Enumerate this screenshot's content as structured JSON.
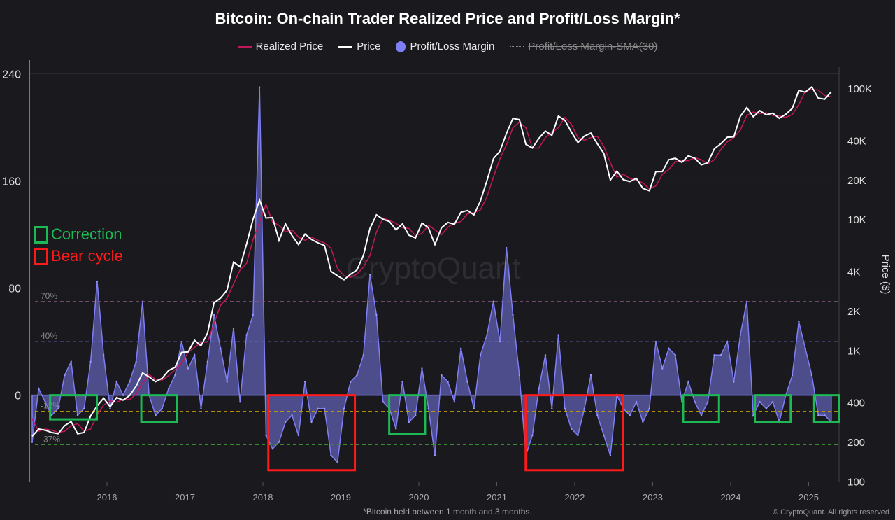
{
  "chart_data": {
    "type": "line",
    "title": "Bitcoin: On-chain Trader Realized Price and Profit/Loss Margin*",
    "footnote": "*Bitcoin held between 1 month and 3 months.",
    "copyright": "© CryptoQuant. All rights reserved",
    "watermark": "CryptoQuant",
    "legend": [
      {
        "name": "Realized Price",
        "color": "#c2185b",
        "marker": "line"
      },
      {
        "name": "Price",
        "color": "#ffffff",
        "marker": "line"
      },
      {
        "name": "Profit/Loss Margin",
        "color": "#7f7ff5",
        "marker": "dot"
      },
      {
        "name": "Profit/Loss Margin-SMA(30)",
        "color": "#888888",
        "marker": "dashed",
        "hidden": true
      }
    ],
    "legend_placement": "top-center",
    "x_axis": {
      "type": "time",
      "start": "2015-01",
      "end": "2025-04",
      "ticks": [
        "2016",
        "2017",
        "2018",
        "2019",
        "2020",
        "2021",
        "2022",
        "2023",
        "2024",
        "2025"
      ]
    },
    "y_left": {
      "label": "",
      "range": [
        -65,
        245
      ],
      "ticks": [
        0,
        80,
        160,
        240
      ]
    },
    "y_right": {
      "label": "Price ($)",
      "scale": "log",
      "range": [
        98,
        145000
      ],
      "ticks": [
        {
          "v": 100,
          "t": "100"
        },
        {
          "v": 200,
          "t": "200"
        },
        {
          "v": 400,
          "t": "400"
        },
        {
          "v": 1000,
          "t": "1K"
        },
        {
          "v": 2000,
          "t": "2K"
        },
        {
          "v": 4000,
          "t": "4K"
        },
        {
          "v": 10000,
          "t": "10K"
        },
        {
          "v": 20000,
          "t": "20K"
        },
        {
          "v": 40000,
          "t": "40K"
        },
        {
          "v": 100000,
          "t": "100K"
        }
      ]
    },
    "grid": "horizontal",
    "reference_lines": [
      {
        "value": 70,
        "label": "70%",
        "color": "#8a5a8a"
      },
      {
        "value": 40,
        "label": "40%",
        "color": "#6b6bd6"
      },
      {
        "value": -12,
        "label": "-12%",
        "color": "#c8a000"
      },
      {
        "value": -37,
        "label": "-37%",
        "color": "#3a8a3a"
      }
    ],
    "annotation_legend": [
      {
        "label": "Correction",
        "color": "#1db954"
      },
      {
        "label": "Bear cycle",
        "color": "#ff1a1a"
      }
    ],
    "annotation_boxes": [
      {
        "kind": "Correction",
        "from": 2015.27,
        "to": 2015.87,
        "margin_low": -18
      },
      {
        "kind": "Correction",
        "from": 2016.44,
        "to": 2016.9,
        "margin_low": -20
      },
      {
        "kind": "Bear cycle",
        "from": 2018.07,
        "to": 2019.18,
        "margin_low": -56
      },
      {
        "kind": "Correction",
        "from": 2019.62,
        "to": 2020.08,
        "margin_low": -29
      },
      {
        "kind": "Bear cycle",
        "from": 2021.37,
        "to": 2022.62,
        "margin_low": -56
      },
      {
        "kind": "Correction",
        "from": 2023.39,
        "to": 2023.85,
        "margin_low": -20
      },
      {
        "kind": "Correction",
        "from": 2024.31,
        "to": 2024.77,
        "margin_low": -20
      },
      {
        "kind": "Correction",
        "from": 2025.07,
        "to": 2025.39,
        "margin_low": -20
      }
    ],
    "series": [
      {
        "name": "Price",
        "frequency": "monthly",
        "start": "2015-01",
        "values": [
          220,
          250,
          245,
          235,
          230,
          265,
          285,
          230,
          235,
          315,
          375,
          430,
          370,
          435,
          415,
          450,
          530,
          670,
          625,
          575,
          610,
          700,
          740,
          960,
          970,
          1190,
          1080,
          1350,
          2300,
          2500,
          2870,
          4700,
          4340,
          6450,
          10000,
          14000,
          10200,
          10300,
          6900,
          9200,
          7500,
          6400,
          7700,
          7000,
          6600,
          6300,
          4000,
          3700,
          3450,
          3800,
          4100,
          5300,
          8500,
          10800,
          10000,
          9600,
          8300,
          9200,
          7550,
          7200,
          9350,
          8600,
          6400,
          8600,
          9450,
          9150,
          11300,
          11650,
          10800,
          13800,
          19700,
          29000,
          33100,
          45200,
          58800,
          57700,
          37300,
          35000,
          41500,
          47100,
          43800,
          61300,
          57000,
          46300,
          38500,
          43200,
          45500,
          37700,
          31800,
          19900,
          23300,
          20000,
          19400,
          20500,
          17200,
          16500,
          23100,
          23150,
          28500,
          29250,
          27200,
          30500,
          29200,
          26000,
          27000,
          34500,
          37700,
          42300,
          42600,
          61100,
          71300,
          60600,
          67500,
          62700,
          64600,
          59000,
          63300,
          70200,
          96400,
          93400,
          102400,
          84300,
          82500,
          94000
        ]
      },
      {
        "name": "Realized Price",
        "frequency": "monthly",
        "start": "2015-01",
        "values": [
          300,
          240,
          250,
          245,
          235,
          240,
          265,
          275,
          240,
          250,
          320,
          380,
          410,
          400,
          420,
          420,
          460,
          560,
          650,
          600,
          590,
          640,
          710,
          800,
          960,
          1050,
          1150,
          1150,
          1600,
          2200,
          2500,
          3200,
          4100,
          4600,
          7000,
          9500,
          13000,
          9500,
          9000,
          8000,
          8300,
          7300,
          6900,
          7300,
          6900,
          6600,
          6000,
          4200,
          3700,
          3600,
          3800,
          4300,
          5300,
          8000,
          10200,
          9800,
          9300,
          8600,
          8500,
          7500,
          7800,
          9000,
          8300,
          7600,
          8700,
          9300,
          9600,
          11000,
          11200,
          11800,
          14800,
          21000,
          29000,
          37000,
          50000,
          55000,
          50000,
          35000,
          35000,
          42000,
          46000,
          50000,
          60000,
          53000,
          42000,
          40000,
          42000,
          43000,
          36000,
          27000,
          21000,
          22000,
          20500,
          19800,
          19000,
          17000,
          18000,
          22000,
          24000,
          27500,
          28000,
          28000,
          29500,
          28500,
          26500,
          28500,
          34000,
          39000,
          42000,
          48000,
          62000,
          66000,
          64000,
          65000,
          62000,
          61500,
          60000,
          63000,
          75000,
          95000,
          98000,
          97000,
          88000,
          86000
        ]
      },
      {
        "name": "Profit/Loss Margin",
        "frequency": "monthly",
        "start": "2015-01",
        "values": [
          -35,
          5,
          -5,
          -15,
          -10,
          15,
          25,
          -15,
          -10,
          25,
          85,
          30,
          -10,
          10,
          0,
          10,
          25,
          70,
          0,
          -15,
          -10,
          5,
          15,
          40,
          20,
          30,
          -10,
          25,
          60,
          35,
          10,
          50,
          -5,
          45,
          60,
          230,
          -30,
          -40,
          -35,
          -20,
          -15,
          -30,
          10,
          -20,
          -10,
          -10,
          -45,
          -50,
          -10,
          10,
          15,
          30,
          90,
          60,
          -5,
          -10,
          -25,
          10,
          -20,
          -15,
          20,
          -10,
          -45,
          15,
          10,
          -5,
          35,
          10,
          -10,
          30,
          45,
          70,
          40,
          110,
          60,
          15,
          -45,
          -30,
          5,
          30,
          -10,
          45,
          -10,
          -25,
          -30,
          -10,
          15,
          -15,
          -30,
          -45,
          0,
          -10,
          -15,
          -5,
          -20,
          -10,
          40,
          20,
          35,
          30,
          -5,
          10,
          -5,
          -15,
          -5,
          30,
          30,
          40,
          10,
          45,
          70,
          -15,
          -5,
          -10,
          -5,
          -20,
          0,
          15,
          55,
          35,
          15,
          -15,
          -15,
          -20
        ]
      }
    ]
  }
}
